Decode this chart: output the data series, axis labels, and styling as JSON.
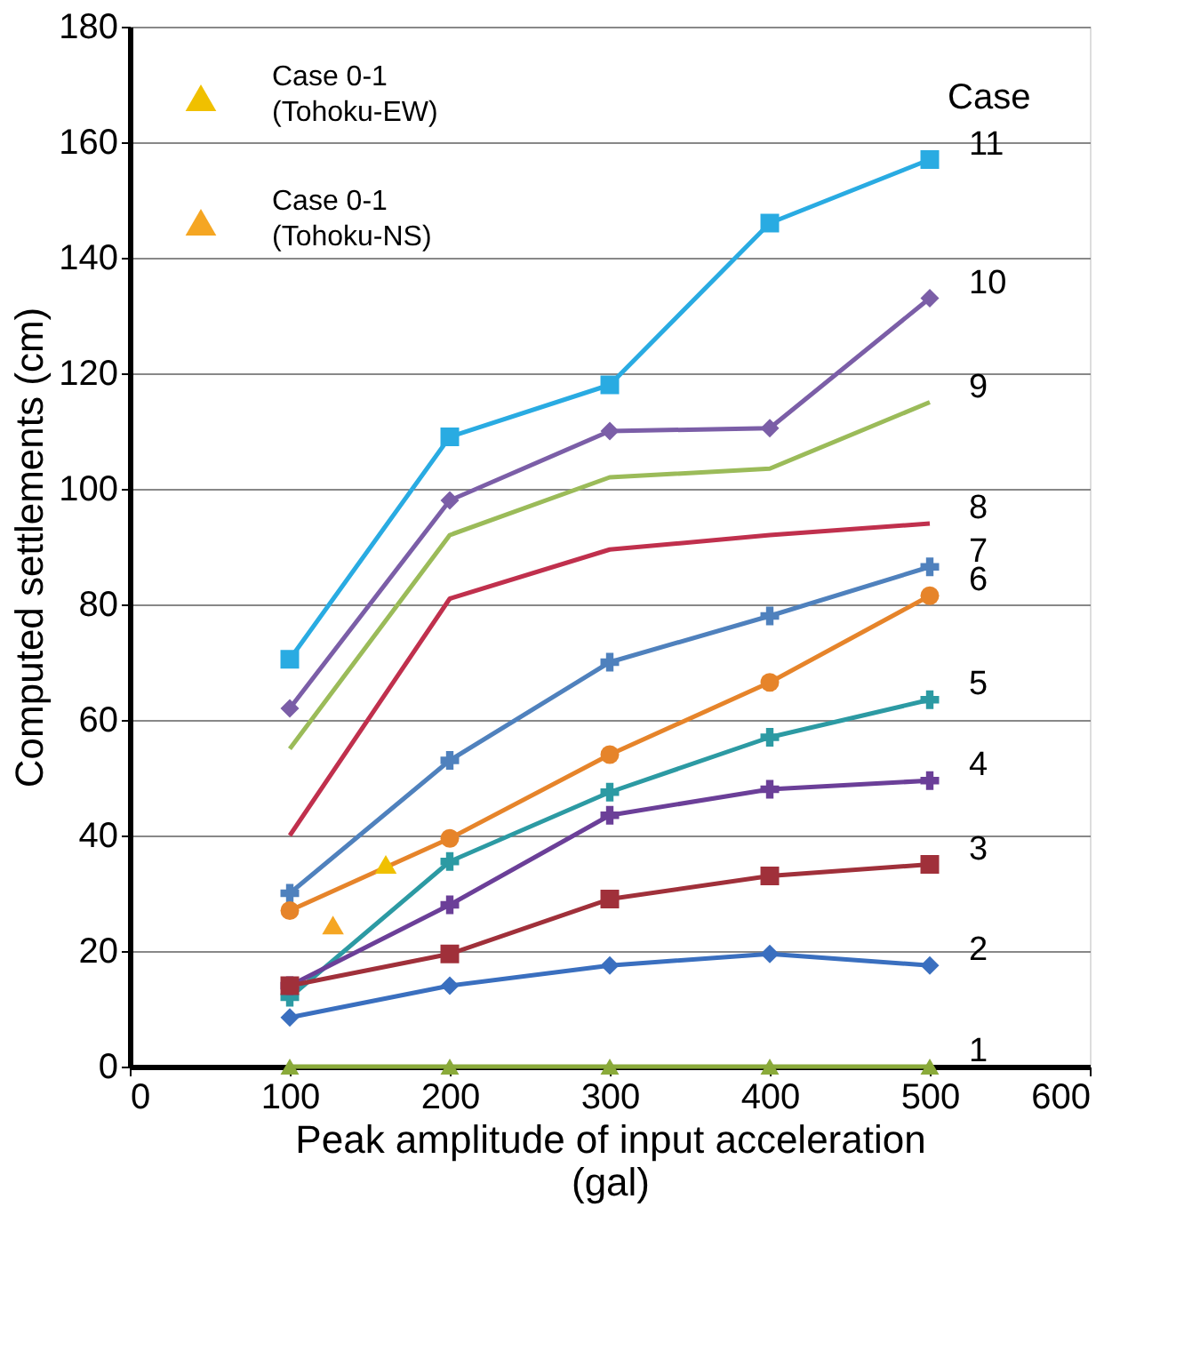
{
  "chart_data": {
    "type": "line",
    "xlabel": "Peak amplitude of input acceleration\n(gal)",
    "ylabel": "Computed settlements (cm)",
    "legend_title": "Case",
    "xlim": [
      0,
      600
    ],
    "xticks": [
      0,
      100,
      200,
      300,
      400,
      500,
      600
    ],
    "ylim": [
      0,
      180
    ],
    "yticks": [
      0,
      20,
      40,
      60,
      80,
      100,
      120,
      140,
      160,
      180
    ],
    "grid": "y",
    "legend": "top left",
    "x": [
      100,
      200,
      300,
      400,
      500
    ],
    "series": [
      {
        "name": "11",
        "color": "#29abe2",
        "marker": "square",
        "values": [
          70.5,
          109,
          118,
          146,
          157
        ]
      },
      {
        "name": "10",
        "color": "#7b5ea7",
        "marker": "diamond",
        "values": [
          62,
          98,
          110,
          110.5,
          133
        ]
      },
      {
        "name": "9",
        "color": "#9bbb59",
        "marker": "none",
        "values": [
          55,
          92,
          102,
          103.5,
          115
        ]
      },
      {
        "name": "8",
        "color": "#c0304d",
        "marker": "none",
        "values": [
          40,
          81,
          89.5,
          92,
          94
        ]
      },
      {
        "name": "7",
        "color": "#4f81bd",
        "marker": "cross",
        "values": [
          30,
          53,
          70,
          78,
          86.5
        ]
      },
      {
        "name": "6",
        "color": "#e6842a",
        "marker": "circle",
        "values": [
          27,
          39.5,
          54,
          66.5,
          81.5
        ]
      },
      {
        "name": "5",
        "color": "#2c9aa3",
        "marker": "cross",
        "values": [
          12,
          35.5,
          47.5,
          57,
          63.5
        ]
      },
      {
        "name": "4",
        "color": "#6b3f98",
        "marker": "cross",
        "values": [
          14,
          28,
          43.5,
          48,
          49.5
        ]
      },
      {
        "name": "3",
        "color": "#a0303a",
        "marker": "square",
        "values": [
          14,
          19.5,
          29,
          33,
          35
        ]
      },
      {
        "name": "2",
        "color": "#3a6fbf",
        "marker": "diamond",
        "values": [
          8.5,
          14,
          17.5,
          19.5,
          17.5
        ]
      },
      {
        "name": "1",
        "color": "#8aaa3a",
        "marker": "triangle",
        "values": [
          0,
          0,
          0,
          0,
          0
        ]
      },
      {
        "name": "Case 0-1\n(Tohoku-EW)",
        "type": "scatter",
        "color": "#f0c000",
        "marker": "triangle",
        "x": [
          160
        ],
        "values": [
          35
        ]
      },
      {
        "name": "Case 0-1\n(Tohoku-NS)",
        "type": "scatter",
        "color": "#f5a623",
        "marker": "triangle",
        "x": [
          127
        ],
        "values": [
          24.5
        ]
      }
    ]
  }
}
